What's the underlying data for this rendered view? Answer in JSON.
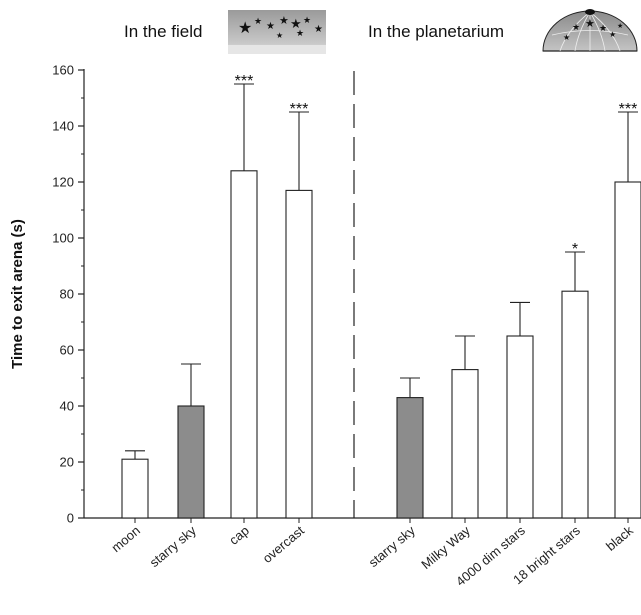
{
  "chart_data": {
    "type": "bar",
    "ylabel": "Time to exit arena (s)",
    "ylim": [
      0,
      160
    ],
    "yticks": [
      0,
      20,
      40,
      60,
      80,
      100,
      120,
      140,
      160
    ],
    "sections": [
      {
        "title": "In the field",
        "icon": "starry-sky-photo-icon"
      },
      {
        "title": "In the planetarium",
        "icon": "planetarium-dome-icon"
      }
    ],
    "categories": [
      "moon",
      "starry sky",
      "cap",
      "overcast",
      "starry sky",
      "Milky Way",
      "4000 dim stars",
      "18 bright stars",
      "black"
    ],
    "values": [
      21,
      40,
      124,
      117,
      43,
      53,
      65,
      81,
      120
    ],
    "errors": [
      3,
      15,
      31,
      28,
      7,
      12,
      12,
      14,
      25
    ],
    "significance": [
      "",
      "",
      "***",
      "***",
      "",
      "",
      "",
      "*",
      "***"
    ],
    "bar_colors": [
      "#ffffff",
      "#8c8c8c",
      "#ffffff",
      "#ffffff",
      "#8c8c8c",
      "#ffffff",
      "#ffffff",
      "#ffffff",
      "#ffffff"
    ],
    "grid": false
  }
}
